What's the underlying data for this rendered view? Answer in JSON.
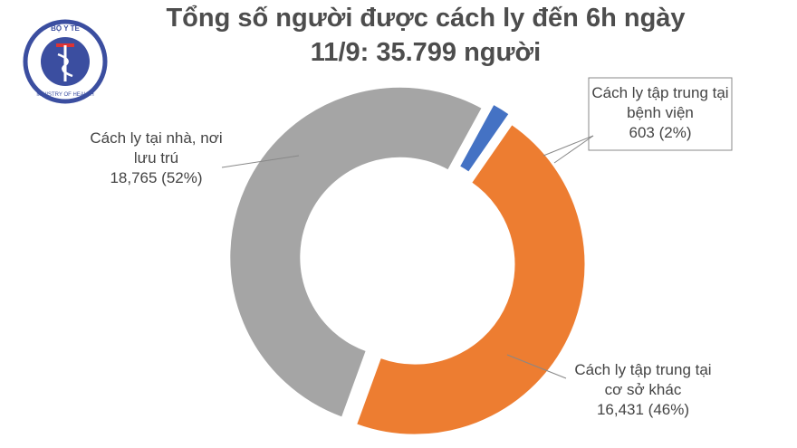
{
  "logo": {
    "top": "BỘ Y TẾ",
    "bottom": "MINISTRY OF HEALTH"
  },
  "chart_data": {
    "type": "pie",
    "title": [
      "Tổng số người được cách ly đến 6h ngày",
      "11/9: 35.799 người"
    ],
    "categories": [
      "Cách ly tại nhà, nơi lưu trú",
      "Cách ly tập trung tại bệnh viện",
      "Cách ly tập trung tại cơ sở khác"
    ],
    "values": [
      18765,
      603,
      16431
    ],
    "value_labels": [
      "18,765 (52%)",
      "603 (2%)",
      "16,431 (46%)"
    ],
    "colors": [
      "#a5a5a5",
      "#4472c4",
      "#ed7d31"
    ]
  }
}
